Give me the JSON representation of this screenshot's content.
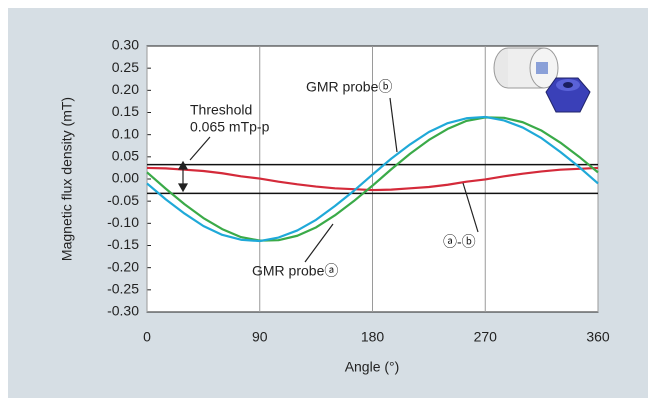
{
  "chart_data": {
    "type": "line",
    "x_label": "Angle (°)",
    "y_label": "Magnetic flux density (mT)",
    "x": [
      0,
      15,
      30,
      45,
      60,
      75,
      90,
      105,
      120,
      135,
      150,
      165,
      180,
      195,
      210,
      225,
      240,
      255,
      270,
      285,
      300,
      315,
      330,
      345,
      360
    ],
    "series": [
      {
        "name": "GMR probeⓑ",
        "color": "#1fa9d8",
        "values": [
          -0.01,
          -0.046,
          -0.078,
          -0.106,
          -0.126,
          -0.137,
          -0.14,
          -0.132,
          -0.116,
          -0.092,
          -0.061,
          -0.027,
          0.01,
          0.046,
          0.078,
          0.106,
          0.126,
          0.137,
          0.14,
          0.132,
          0.116,
          0.092,
          0.061,
          0.027,
          -0.01
        ]
      },
      {
        "name": "GMR probeⓐ",
        "color": "#3aaa48",
        "values": [
          0.015,
          -0.022,
          -0.057,
          -0.088,
          -0.113,
          -0.131,
          -0.139,
          -0.138,
          -0.128,
          -0.109,
          -0.082,
          -0.05,
          -0.015,
          0.022,
          0.057,
          0.088,
          0.113,
          0.131,
          0.139,
          0.138,
          0.128,
          0.109,
          0.082,
          0.05,
          0.015
        ]
      },
      {
        "name": "ⓐ-ⓑ",
        "color": "#d42a3a",
        "values": [
          0.025,
          0.024,
          0.021,
          0.018,
          0.013,
          0.006,
          0.001,
          -0.006,
          -0.012,
          -0.017,
          -0.021,
          -0.023,
          -0.025,
          -0.024,
          -0.021,
          -0.018,
          -0.013,
          -0.006,
          -0.001,
          0.006,
          0.012,
          0.017,
          0.021,
          0.023,
          0.025
        ]
      }
    ],
    "threshold_lines": [
      0.0325,
      -0.0325
    ],
    "annotations": [
      "Threshold",
      "0.065 mTp-p"
    ],
    "xlim": [
      0,
      360
    ],
    "xticks": [
      0,
      90,
      180,
      270,
      360
    ],
    "ylim": [
      -0.3,
      0.3
    ],
    "yticks": [
      {
        "value": 0.3,
        "label": "0.30"
      },
      {
        "value": 0.25,
        "label": "0.25"
      },
      {
        "value": 0.2,
        "label": "0.20"
      },
      {
        "value": 0.15,
        "label": "0.15"
      },
      {
        "value": 0.1,
        "label": "0.10"
      },
      {
        "value": 0.05,
        "label": "0.05"
      },
      {
        "value": 0,
        "label": "0.00"
      },
      {
        "value": -0.05,
        "label": "-0.05"
      },
      {
        "value": -0.1,
        "label": "-0.10"
      },
      {
        "value": -0.15,
        "label": "-0.15"
      },
      {
        "value": -0.2,
        "label": "-0.20"
      },
      {
        "value": -0.25,
        "label": "-0.25"
      },
      {
        "value": -0.3,
        "label": "-0.30"
      }
    ],
    "grid": true
  }
}
